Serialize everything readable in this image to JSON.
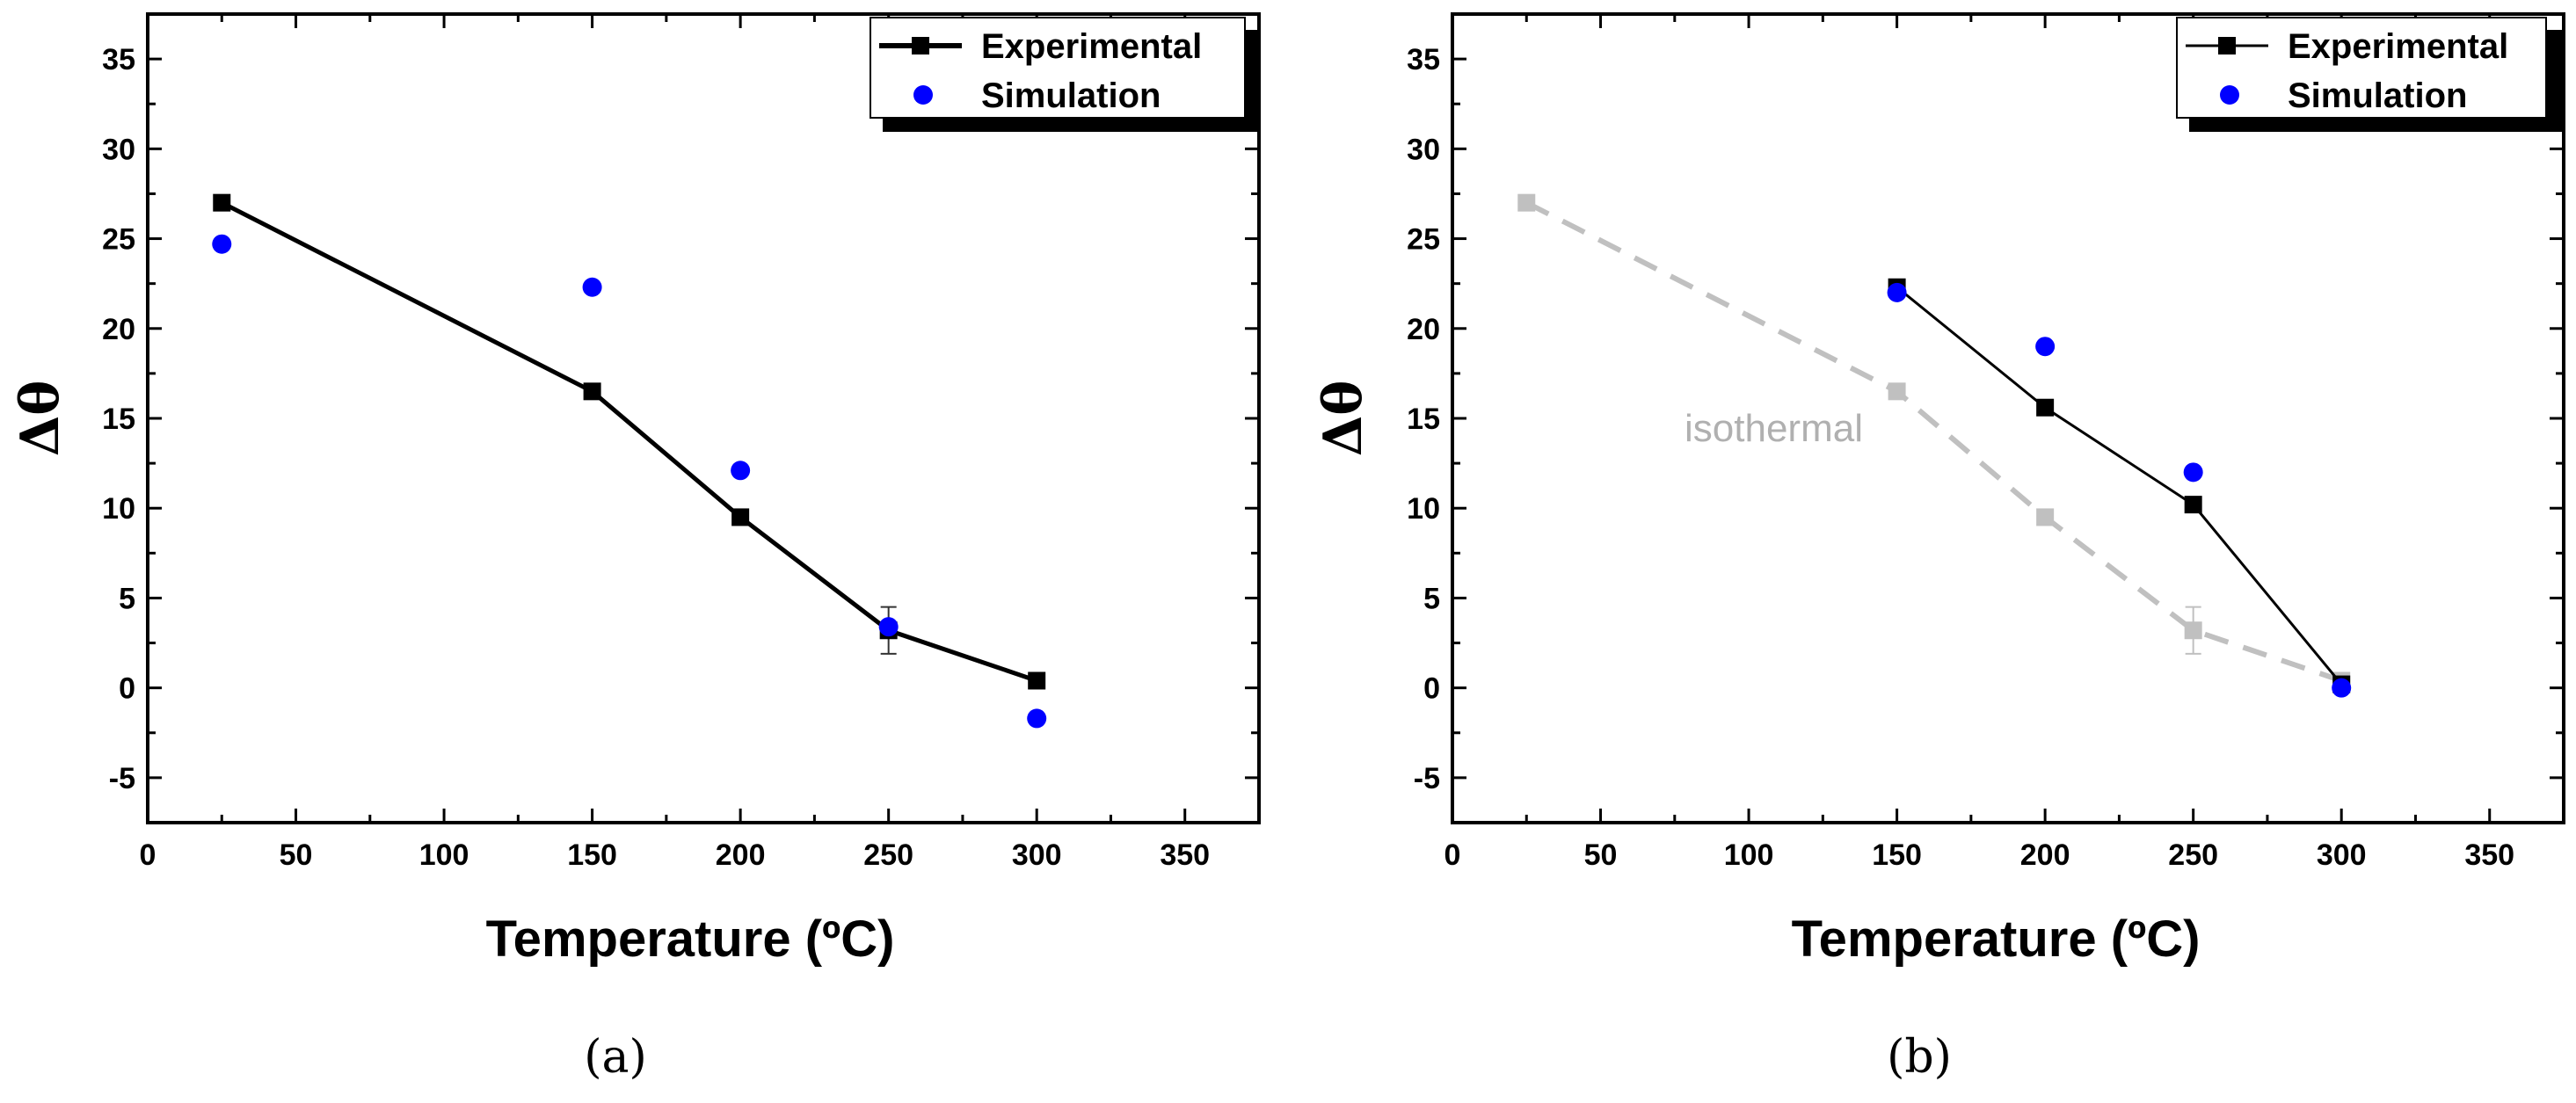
{
  "chart_data": [
    {
      "type": "line",
      "panel": "a",
      "caption": "(a)",
      "xlabel": "Temperature (ºC)",
      "ylabel": "Δθ",
      "xlim": [
        0,
        375
      ],
      "ylim": [
        -7.5,
        37.5
      ],
      "xticks": [
        0,
        50,
        100,
        150,
        200,
        250,
        300,
        350
      ],
      "yticks": [
        -5,
        0,
        5,
        10,
        15,
        20,
        25,
        30,
        35
      ],
      "legend": {
        "placement": "top-right",
        "entries": [
          "Experimental",
          "Simulation"
        ]
      },
      "series": [
        {
          "name": "Experimental",
          "style": "line-square",
          "color": "#000000",
          "x": [
            25,
            150,
            200,
            250,
            300
          ],
          "y": [
            27.0,
            16.5,
            9.5,
            3.2,
            0.4
          ],
          "errors": [
            null,
            null,
            null,
            1.3,
            null
          ]
        },
        {
          "name": "Simulation",
          "style": "circle",
          "color": "#0000ff",
          "x": [
            25,
            150,
            200,
            250,
            300
          ],
          "y": [
            24.7,
            22.3,
            12.1,
            3.4,
            -1.7
          ]
        }
      ]
    },
    {
      "type": "line",
      "panel": "b",
      "caption": "(b)",
      "xlabel": "Temperature (ºC)",
      "ylabel": "Δθ",
      "xlim": [
        0,
        375
      ],
      "ylim": [
        -7.5,
        37.5
      ],
      "xticks": [
        0,
        50,
        100,
        150,
        200,
        250,
        300,
        350
      ],
      "yticks": [
        -5,
        0,
        5,
        10,
        15,
        20,
        25,
        30,
        35
      ],
      "legend": {
        "placement": "top-right",
        "entries": [
          "Experimental",
          "Simulation"
        ]
      },
      "annotation": {
        "text": "isothermal",
        "x": 100,
        "y": 14.5
      },
      "series": [
        {
          "name": "isothermal",
          "style": "dashed-square",
          "color": "#c0c0c0",
          "x": [
            25,
            150,
            200,
            250,
            300
          ],
          "y": [
            27.0,
            16.5,
            9.5,
            3.2,
            0.4
          ],
          "errors": [
            null,
            null,
            null,
            1.3,
            null
          ]
        },
        {
          "name": "Experimental",
          "style": "line-square",
          "color": "#000000",
          "x": [
            150,
            200,
            250,
            300
          ],
          "y": [
            22.3,
            15.6,
            10.2,
            0.2
          ]
        },
        {
          "name": "Simulation",
          "style": "circle",
          "color": "#0000ff",
          "x": [
            150,
            200,
            250,
            300
          ],
          "y": [
            22.0,
            19.0,
            12.0,
            0.0
          ]
        }
      ]
    }
  ]
}
